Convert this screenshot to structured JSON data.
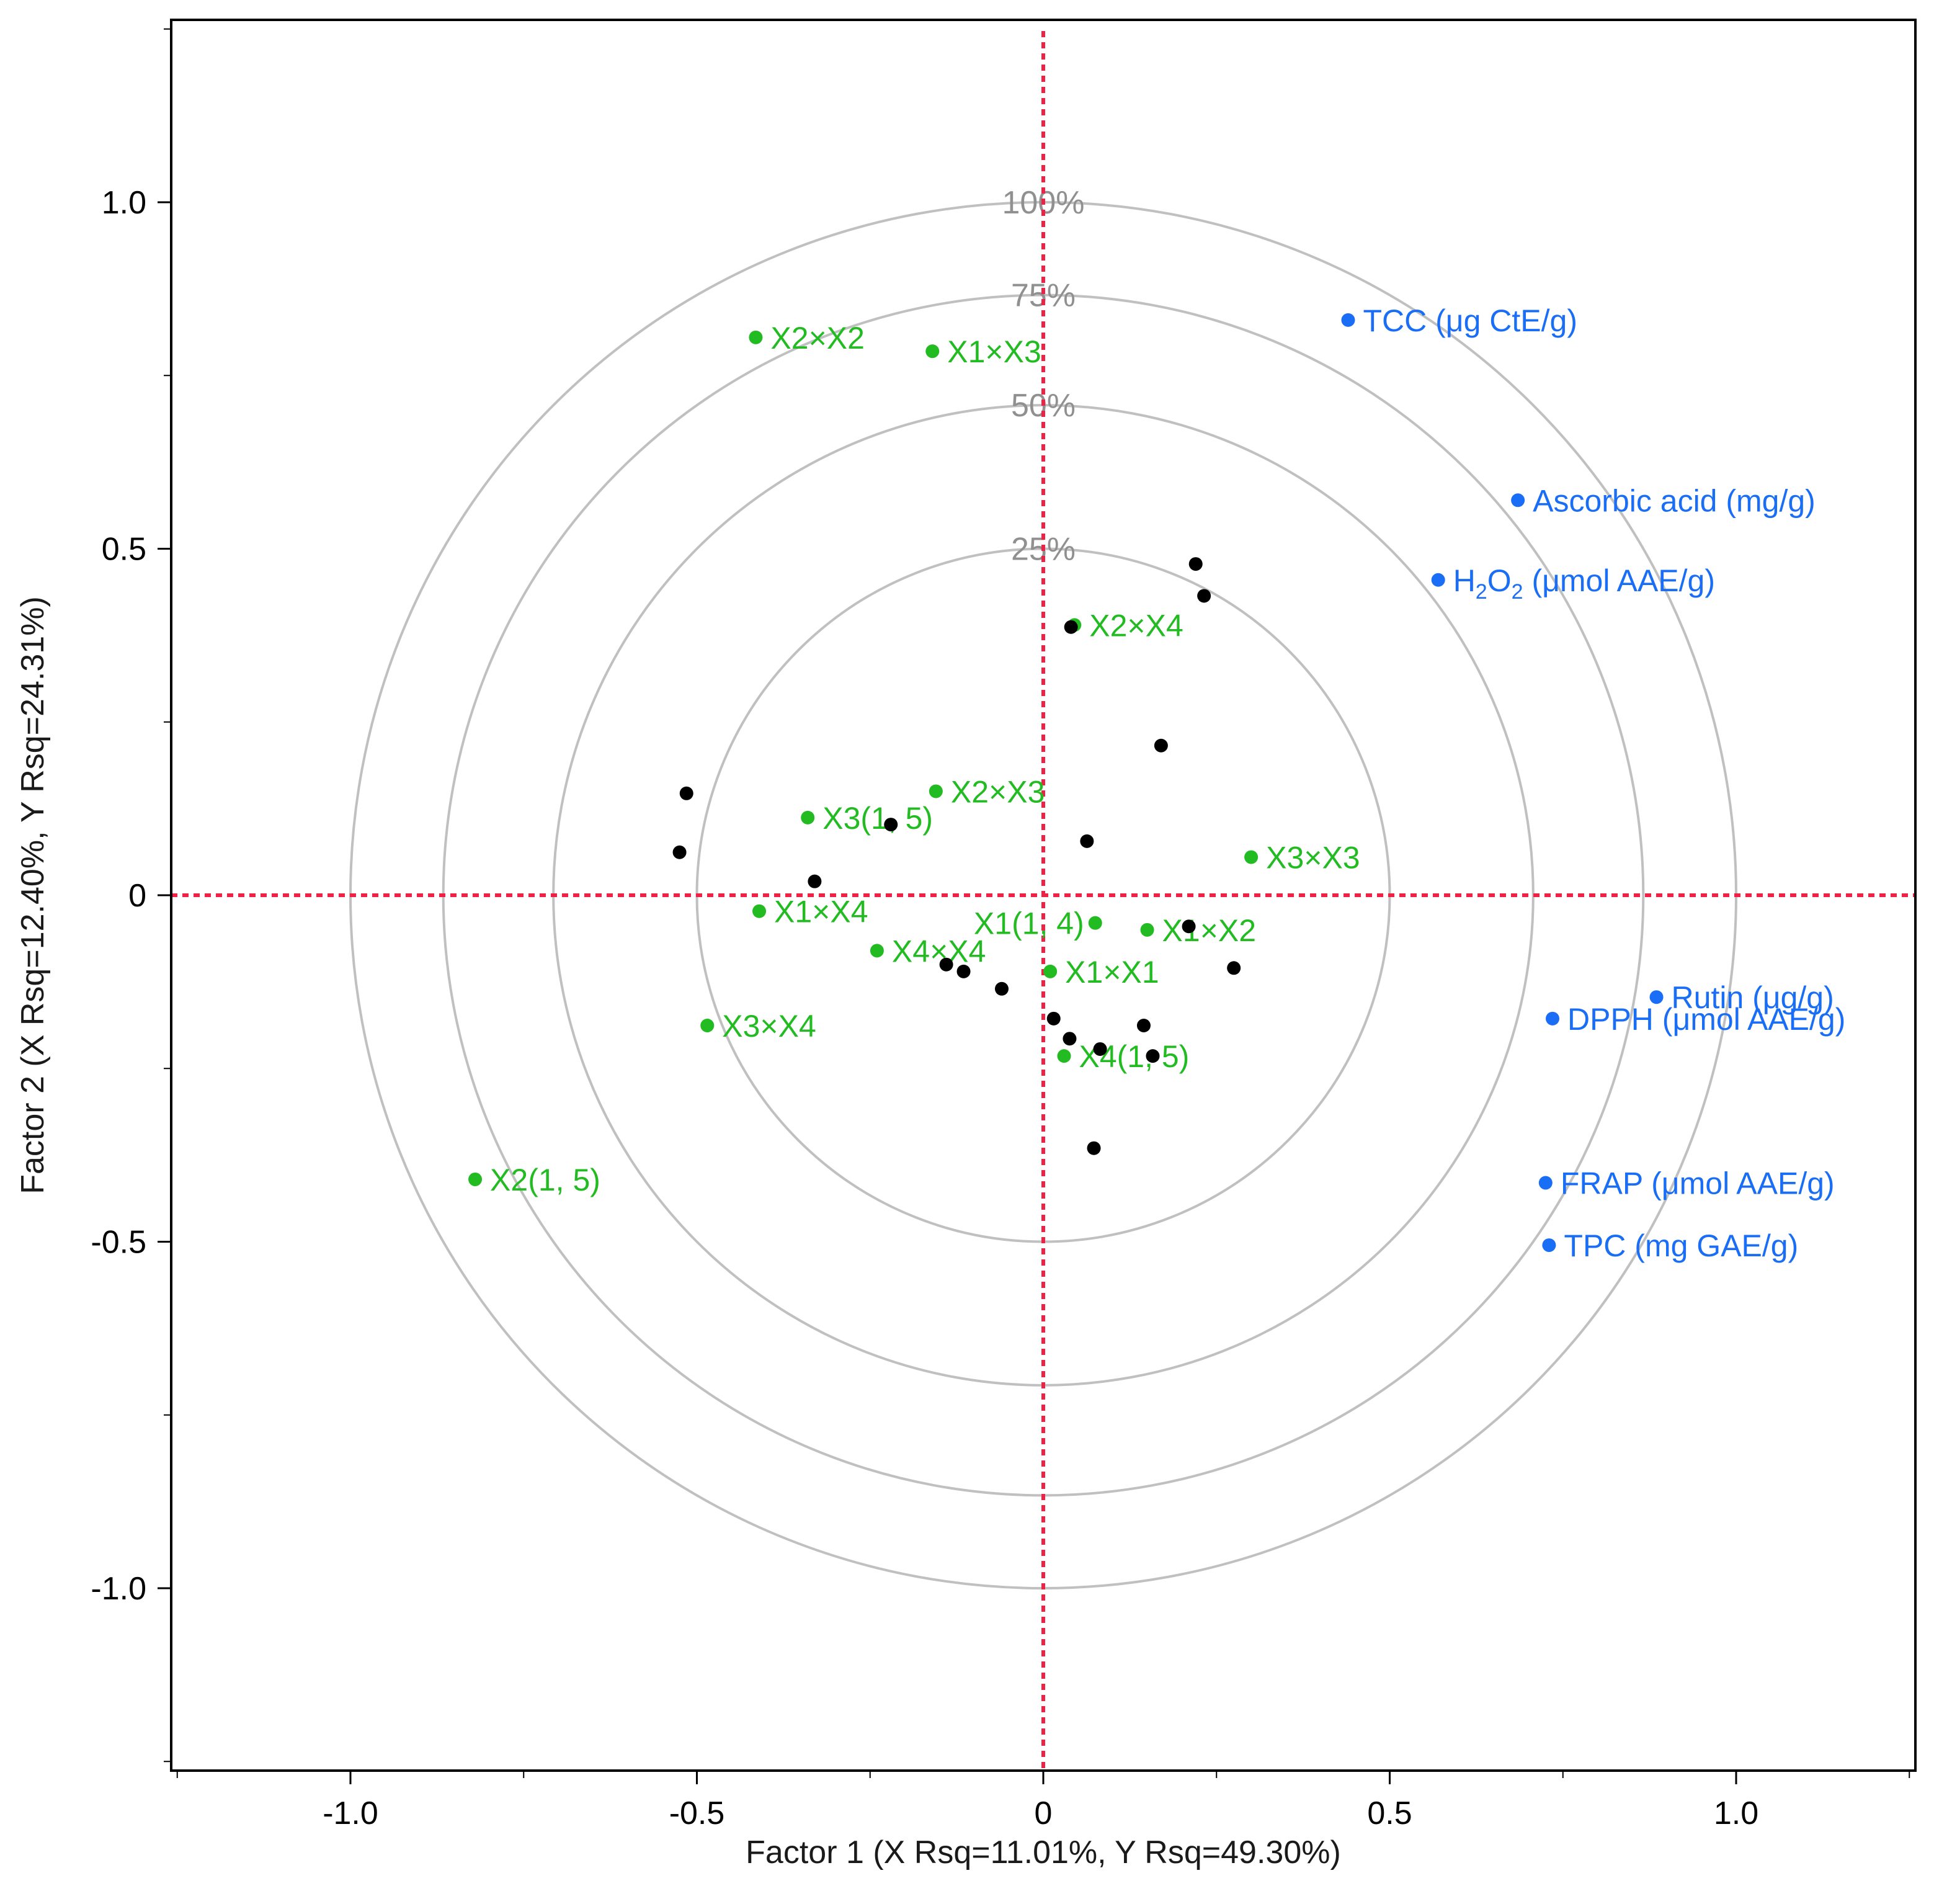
{
  "chart_data": {
    "type": "scatter",
    "title": "",
    "xlabel": "Factor 1 (X Rsq=11.01%, Y Rsq=49.30%)",
    "ylabel": "Factor 2 (X Rsq=12.40%, Y Rsq=24.31%)",
    "xlim": [
      -1.25,
      1.25
    ],
    "ylim": [
      -1.25,
      1.25
    ],
    "x_ticks": [
      {
        "v": -1.0,
        "label": "-1.0"
      },
      {
        "v": -0.5,
        "label": "-0.5"
      },
      {
        "v": 0,
        "label": "0"
      },
      {
        "v": 0.5,
        "label": "0.5"
      },
      {
        "v": 1.0,
        "label": "1.0"
      }
    ],
    "y_ticks": [
      {
        "v": 1.0,
        "label": "1.0"
      },
      {
        "v": 0.5,
        "label": "0.5"
      },
      {
        "v": 0,
        "label": "0"
      },
      {
        "v": -0.5,
        "label": "-0.5"
      },
      {
        "v": -1.0,
        "label": "-1.0"
      }
    ],
    "circles": [
      {
        "r": 0.5,
        "label": "25%"
      },
      {
        "r": 0.7071,
        "label": "50%"
      },
      {
        "r": 0.866,
        "label": "75%"
      },
      {
        "r": 1.0,
        "label": "100%"
      }
    ],
    "colors": {
      "response": "#1a6ef5",
      "factor": "#22bb22",
      "observation": "#000000",
      "reference": "#ee2244",
      "circle": "#c0c0c0"
    },
    "series": [
      {
        "name": "responses",
        "points": [
          {
            "x": 0.44,
            "y": 0.83,
            "label": "TCC (μg CtE/g)"
          },
          {
            "x": 0.685,
            "y": 0.57,
            "label": "Ascorbic acid (mg/g)"
          },
          {
            "x": 0.57,
            "y": 0.455,
            "label_pre": "H",
            "sub1": "2",
            "label_mid": "O",
            "sub2": "2",
            "label_post": " (μmol AAE/g)"
          },
          {
            "x": 0.885,
            "y": -0.147,
            "label": "Rutin (μg/g)"
          },
          {
            "x": 0.735,
            "y": -0.178,
            "label": "DPPH (μmol AAE/g)"
          },
          {
            "x": 0.725,
            "y": -0.415,
            "label": "FRAP (μmol AAE/g)"
          },
          {
            "x": 0.73,
            "y": -0.505,
            "label": "TPC (mg GAE/g)"
          }
        ]
      },
      {
        "name": "factors",
        "points": [
          {
            "x": -0.415,
            "y": 0.805,
            "label": "X2×X2"
          },
          {
            "x": -0.16,
            "y": 0.785,
            "label": "X1×X3"
          },
          {
            "x": 0.045,
            "y": 0.39,
            "label": "X2×X4"
          },
          {
            "x": -0.155,
            "y": 0.15,
            "label": "X2×X3"
          },
          {
            "x": -0.34,
            "y": 0.112,
            "label": "X3(1, 5)"
          },
          {
            "x": 0.3,
            "y": 0.055,
            "label": "X3×X3"
          },
          {
            "x": -0.41,
            "y": -0.023,
            "label": "X1×X4"
          },
          {
            "x": 0.075,
            "y": -0.04,
            "label": "X1(1, 4)",
            "anchor": "end"
          },
          {
            "x": 0.15,
            "y": -0.05,
            "label": "X1×X2"
          },
          {
            "x": -0.24,
            "y": -0.08,
            "label": "X4×X4"
          },
          {
            "x": 0.01,
            "y": -0.11,
            "label": "X1×X1"
          },
          {
            "x": -0.485,
            "y": -0.188,
            "label": "X3×X4"
          },
          {
            "x": 0.03,
            "y": -0.232,
            "label": "X4(1, 5)"
          },
          {
            "x": -0.82,
            "y": -0.41,
            "label": "X2(1, 5)"
          }
        ]
      },
      {
        "name": "observations",
        "points": [
          {
            "x": 0.22,
            "y": 0.478
          },
          {
            "x": 0.232,
            "y": 0.432
          },
          {
            "x": 0.04,
            "y": 0.387
          },
          {
            "x": 0.17,
            "y": 0.216
          },
          {
            "x": -0.515,
            "y": 0.147
          },
          {
            "x": -0.22,
            "y": 0.102
          },
          {
            "x": -0.525,
            "y": 0.062
          },
          {
            "x": 0.063,
            "y": 0.078
          },
          {
            "x": -0.33,
            "y": 0.02
          },
          {
            "x": 0.21,
            "y": -0.045
          },
          {
            "x": 0.275,
            "y": -0.105
          },
          {
            "x": -0.14,
            "y": -0.1
          },
          {
            "x": -0.115,
            "y": -0.11
          },
          {
            "x": -0.06,
            "y": -0.135
          },
          {
            "x": 0.015,
            "y": -0.178
          },
          {
            "x": 0.145,
            "y": -0.188
          },
          {
            "x": 0.038,
            "y": -0.207
          },
          {
            "x": 0.082,
            "y": -0.222
          },
          {
            "x": 0.158,
            "y": -0.232
          },
          {
            "x": 0.073,
            "y": -0.365
          }
        ]
      }
    ]
  }
}
